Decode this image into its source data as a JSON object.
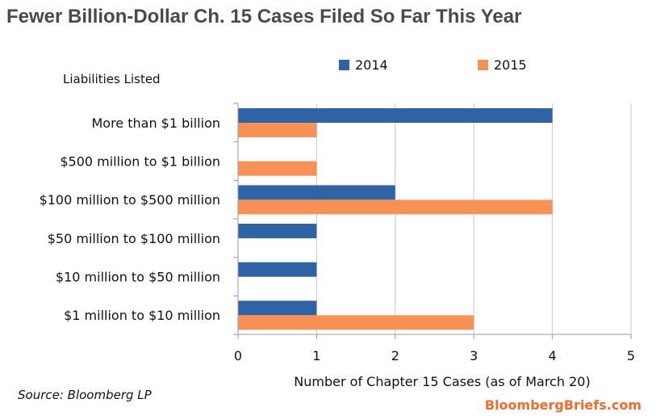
{
  "chart_data": {
    "type": "bar",
    "orientation": "horizontal",
    "title": "Fewer Billion-Dollar Ch. 15 Cases Filed So Far This Year",
    "category_axis_title": "Liabilities Listed",
    "xlabel": "Number  of Chapter 15 Cases (as of March 20)",
    "categories": [
      "More than $1 billion",
      "$500 million to $1 billion",
      "$100 million to $500 million",
      "$50 million to $100 million",
      "$10 million to $50 million",
      "$1 million to $10 million"
    ],
    "series": [
      {
        "name": "2014",
        "color": "#2e64a6",
        "values": [
          4,
          0,
          2,
          1,
          1,
          1
        ]
      },
      {
        "name": "2015",
        "color": "#f79155",
        "values": [
          1,
          1,
          4,
          0,
          0,
          3
        ]
      }
    ],
    "xlim": [
      0,
      5
    ],
    "xticks": [
      "0",
      "1",
      "2",
      "3",
      "4",
      "5"
    ],
    "grid": true,
    "legend_position": "top",
    "source": "Source: Bloomberg LP",
    "brand": "BloombergBriefs.com"
  }
}
